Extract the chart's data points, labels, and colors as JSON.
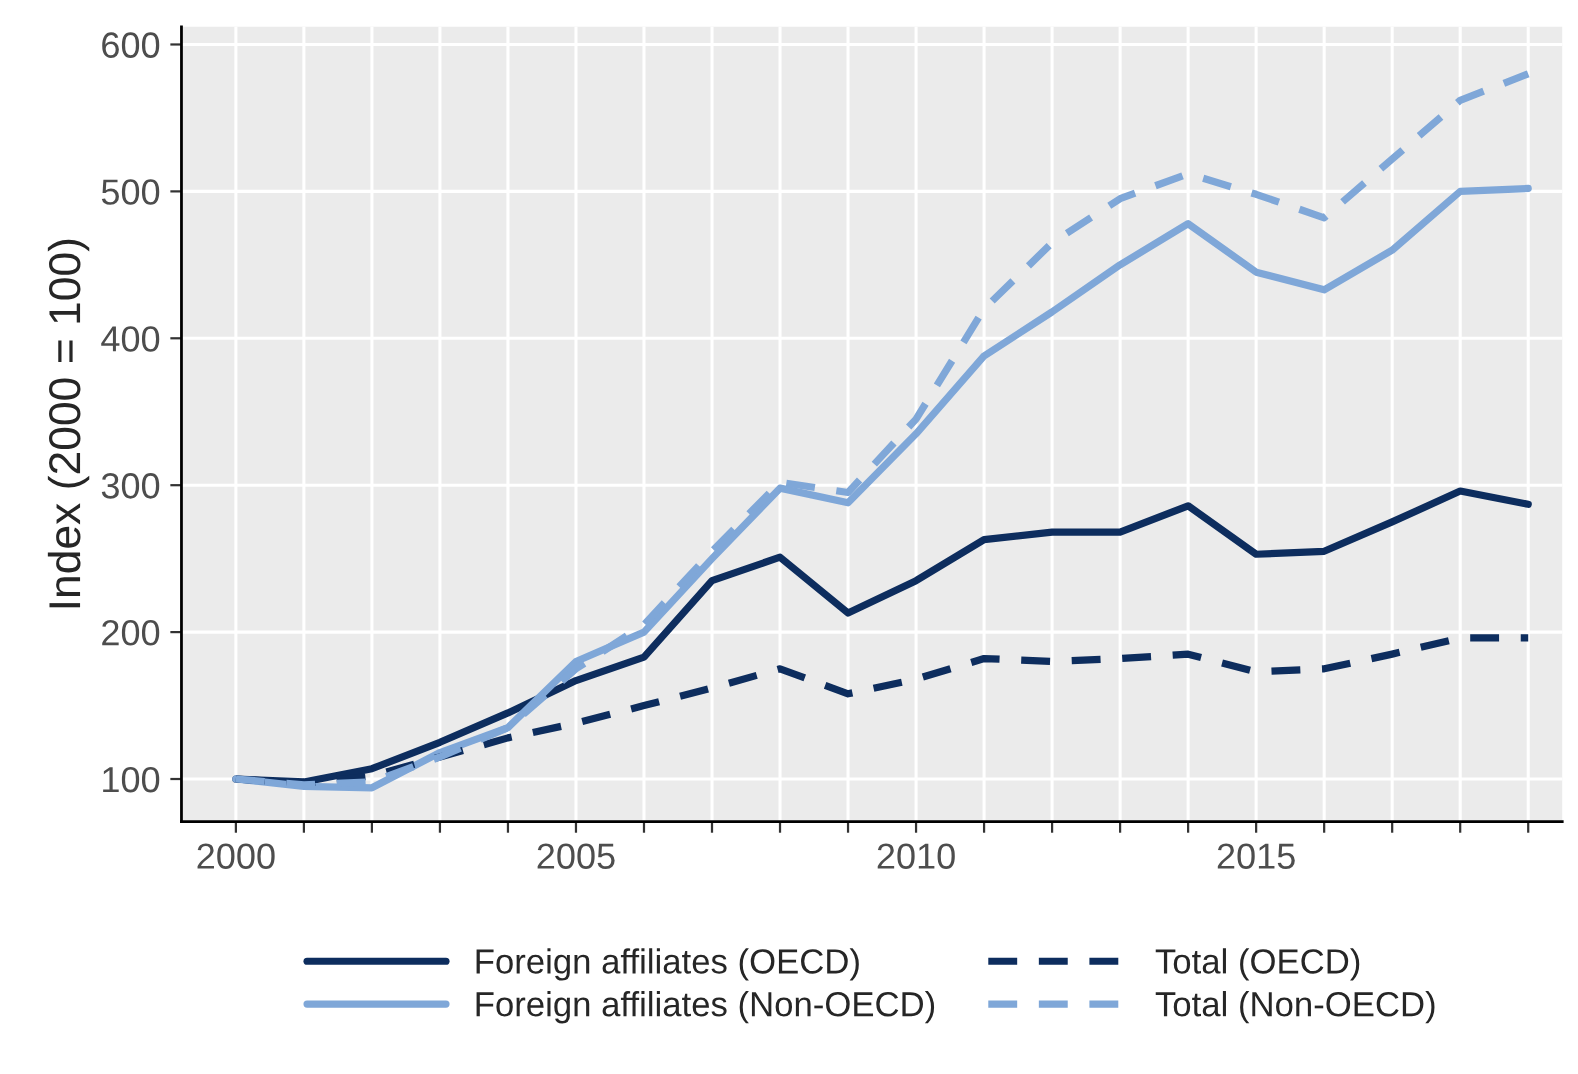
{
  "chart_data": {
    "type": "line",
    "ylabel": "Index (2000 = 100)",
    "x": [
      2000,
      2001,
      2002,
      2003,
      2004,
      2005,
      2006,
      2007,
      2008,
      2009,
      2010,
      2011,
      2012,
      2013,
      2014,
      2015,
      2016,
      2017,
      2018,
      2019
    ],
    "series": [
      {
        "name": "Foreign affiliates (OECD)",
        "color": "#0d2d5e",
        "line_style": "solid",
        "values": [
          100,
          98,
          107,
          125,
          145,
          167,
          183,
          235,
          251,
          213,
          235,
          263,
          268,
          268,
          286,
          253,
          255,
          275,
          296,
          287
        ]
      },
      {
        "name": "Foreign affiliates (Non-OECD)",
        "color": "#7fa7d8",
        "line_style": "solid",
        "values": [
          100,
          95,
          94,
          118,
          135,
          180,
          200,
          250,
          298,
          288,
          335,
          388,
          418,
          450,
          478,
          445,
          433,
          460,
          500,
          502
        ]
      },
      {
        "name": "Total (OECD)",
        "color": "#0d2d5e",
        "line_style": "dashed",
        "values": [
          100,
          97,
          102,
          115,
          128,
          138,
          150,
          162,
          175,
          158,
          168,
          182,
          180,
          182,
          185,
          173,
          175,
          185,
          196,
          196
        ]
      },
      {
        "name": "Total (Non-OECD)",
        "color": "#7fa7d8",
        "line_style": "dashed",
        "values": [
          100,
          96,
          98,
          115,
          135,
          175,
          205,
          255,
          302,
          295,
          345,
          420,
          465,
          495,
          512,
          498,
          482,
          522,
          562,
          580
        ]
      }
    ],
    "xlim": [
      1999.2,
      2019.5
    ],
    "ylim": [
      71,
      612
    ],
    "xticks": [
      2000,
      {
        "value": 2001,
        "label": null
      },
      {
        "value": 2002,
        "label": null
      },
      {
        "value": 2003,
        "label": null
      },
      {
        "value": 2004,
        "label": null
      },
      2005,
      {
        "value": 2006,
        "label": null
      },
      {
        "value": 2007,
        "label": null
      },
      {
        "value": 2008,
        "label": null
      },
      {
        "value": 2009,
        "label": null
      },
      2010,
      {
        "value": 2011,
        "label": null
      },
      {
        "value": 2012,
        "label": null
      },
      {
        "value": 2013,
        "label": null
      },
      {
        "value": 2014,
        "label": null
      },
      2015,
      {
        "value": 2016,
        "label": null
      },
      {
        "value": 2017,
        "label": null
      },
      {
        "value": 2018,
        "label": null
      },
      {
        "value": 2019,
        "label": null
      }
    ],
    "yticks": [
      100,
      200,
      300,
      400,
      500,
      600
    ],
    "grid": true,
    "legend": "bottom",
    "marker": "none"
  }
}
